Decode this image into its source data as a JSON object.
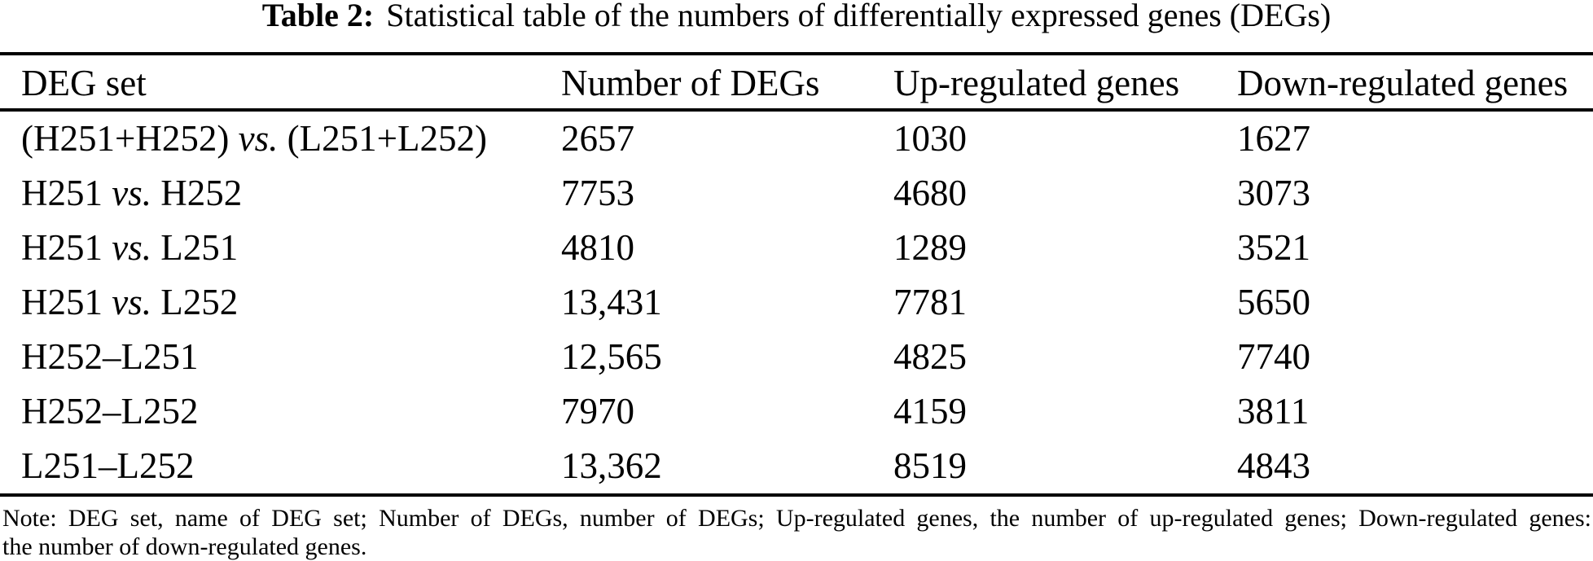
{
  "caption": {
    "label": "Table 2:",
    "text": "Statistical table of the numbers of differentially expressed genes (DEGs)"
  },
  "table": {
    "vs_token": "vs.",
    "columns": [
      "DEG set",
      "Number of DEGs",
      "Up-regulated genes",
      "Down-regulated genes"
    ],
    "rows": [
      {
        "deg_set": "(H251+H252) vs. (L251+L252)",
        "number_of_degs": "2657",
        "up_regulated": "1030",
        "down_regulated": "1627"
      },
      {
        "deg_set": "H251 vs. H252",
        "number_of_degs": "7753",
        "up_regulated": "4680",
        "down_regulated": "3073"
      },
      {
        "deg_set": "H251 vs. L251",
        "number_of_degs": "4810",
        "up_regulated": "1289",
        "down_regulated": "3521"
      },
      {
        "deg_set": "H251 vs. L252",
        "number_of_degs": "13,431",
        "up_regulated": "7781",
        "down_regulated": "5650"
      },
      {
        "deg_set": "H252–L251",
        "number_of_degs": "12,565",
        "up_regulated": "4825",
        "down_regulated": "7740"
      },
      {
        "deg_set": "H252–L252",
        "number_of_degs": "7970",
        "up_regulated": "4159",
        "down_regulated": "3811"
      },
      {
        "deg_set": "L251–L252",
        "number_of_degs": "13,362",
        "up_regulated": "8519",
        "down_regulated": "4843"
      }
    ]
  },
  "note": {
    "line1": "Note: DEG set, name of DEG set; Number of DEGs, number of DEGs; Up-regulated genes, the number of up-regulated genes; Down-regulated genes:",
    "line2": "the number of down-regulated genes."
  }
}
